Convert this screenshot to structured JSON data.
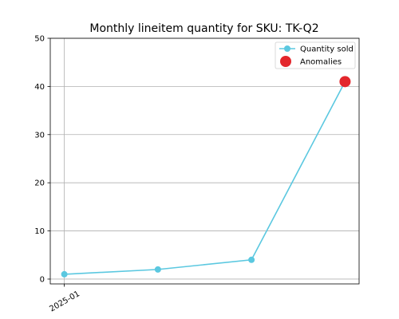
{
  "chart_data": {
    "type": "line",
    "title": "Monthly lineitem quantity for SKU: TK-Q2",
    "xlabel": "",
    "ylabel": "",
    "ylim": [
      -1,
      50
    ],
    "yticks": [
      0,
      10,
      20,
      30,
      40,
      50
    ],
    "x_index": [
      0,
      1,
      2,
      3
    ],
    "xlim": [
      -0.15,
      3.15
    ],
    "x_tick_labels": [
      {
        "index": 0,
        "label": "2025-01"
      }
    ],
    "grid": true,
    "legend_position": "top-right",
    "series": [
      {
        "name": "Quantity sold",
        "values": [
          1,
          2,
          4,
          41
        ],
        "color": "#5bc8e0"
      },
      {
        "name": "Anomalies",
        "points": [
          {
            "index": 3,
            "value": 41
          }
        ],
        "color": "#e3262c"
      }
    ]
  }
}
